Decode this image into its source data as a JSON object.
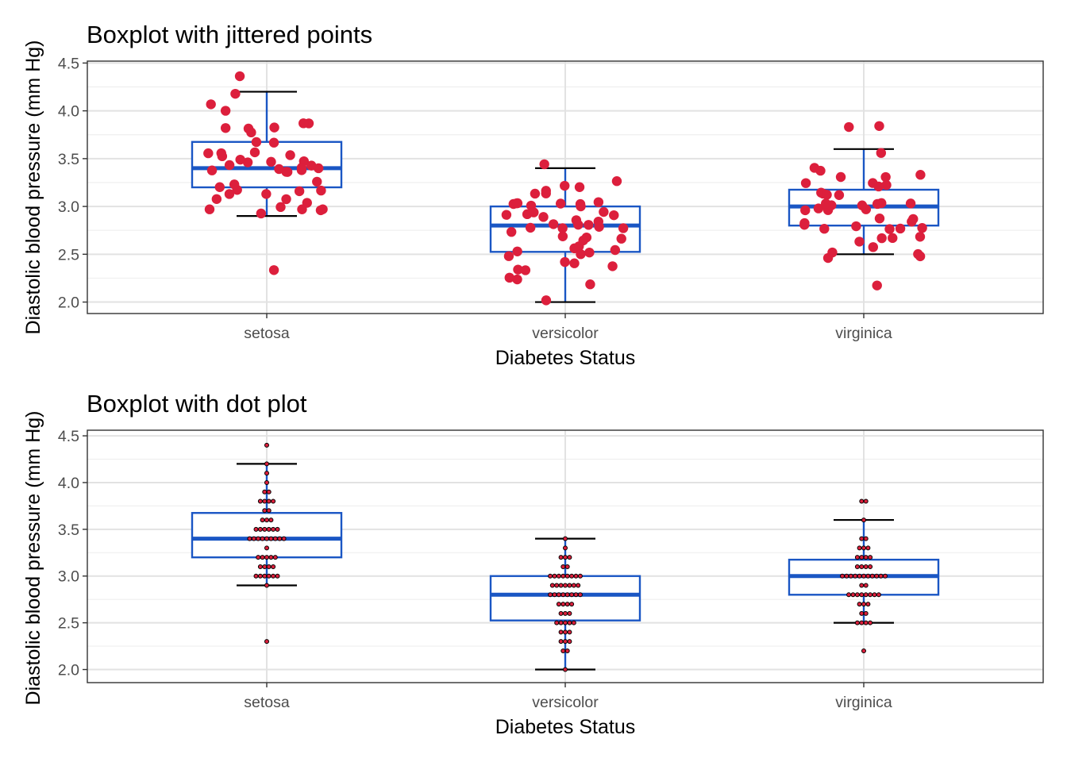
{
  "colors": {
    "box": "#1a56c4",
    "jitter_point": "#dc1f3c",
    "dot_fill": "#dc1f3c",
    "dot_stroke": "#000000",
    "whisker": "#000000",
    "grid_major": "#e2e2e2",
    "grid_minor": "#efefef",
    "panel_border": "#333333",
    "tick_text": "#4d4d4d"
  },
  "chart_data": [
    {
      "type": "box",
      "title": "Boxplot with jittered points",
      "xlabel": "Diabetes Status",
      "ylabel": "Diastolic blood pressure (mm Hg)",
      "categories": [
        "setosa",
        "versicolor",
        "virginica"
      ],
      "ylim": [
        1.88,
        4.52
      ],
      "yticks": [
        2.0,
        2.5,
        3.0,
        3.5,
        4.0,
        4.5
      ],
      "ytick_labels": [
        "2.0",
        "2.5",
        "3.0",
        "3.5",
        "4.0",
        "4.5"
      ],
      "grid": true,
      "overlay": "jitter",
      "boxes": [
        {
          "category": "setosa",
          "whisker_low": 2.9,
          "q1": 3.2,
          "median": 3.4,
          "q3": 3.675,
          "whisker_high": 4.2
        },
        {
          "category": "versicolor",
          "whisker_low": 2.0,
          "q1": 2.525,
          "median": 2.8,
          "q3": 3.0,
          "whisker_high": 3.4
        },
        {
          "category": "virginica",
          "whisker_low": 2.5,
          "q1": 2.8,
          "median": 3.0,
          "q3": 3.175,
          "whisker_high": 3.6
        }
      ],
      "points": [
        {
          "category": "setosa",
          "values": [
            4.4,
            4.2,
            4.1,
            4.0,
            3.9,
            3.9,
            3.8,
            3.8,
            3.8,
            3.8,
            3.7,
            3.7,
            3.6,
            3.6,
            3.6,
            3.5,
            3.5,
            3.5,
            3.5,
            3.5,
            3.5,
            3.4,
            3.4,
            3.4,
            3.4,
            3.4,
            3.4,
            3.4,
            3.4,
            3.4,
            3.3,
            3.2,
            3.2,
            3.2,
            3.2,
            3.2,
            3.1,
            3.1,
            3.1,
            3.1,
            3.0,
            3.0,
            3.0,
            3.0,
            3.0,
            3.0,
            2.9,
            2.3
          ]
        },
        {
          "category": "versicolor",
          "values": [
            3.4,
            3.3,
            3.2,
            3.2,
            3.2,
            3.1,
            3.1,
            3.0,
            3.0,
            3.0,
            3.0,
            3.0,
            3.0,
            3.0,
            3.0,
            2.9,
            2.9,
            2.9,
            2.9,
            2.9,
            2.9,
            2.9,
            2.8,
            2.8,
            2.8,
            2.8,
            2.8,
            2.8,
            2.8,
            2.8,
            2.7,
            2.7,
            2.7,
            2.7,
            2.6,
            2.6,
            2.6,
            2.5,
            2.5,
            2.5,
            2.5,
            2.5,
            2.4,
            2.4,
            2.4,
            2.3,
            2.3,
            2.3,
            2.2,
            2.2,
            2.0
          ]
        },
        {
          "category": "virginica",
          "values": [
            3.8,
            3.8,
            3.6,
            3.4,
            3.4,
            3.3,
            3.3,
            3.3,
            3.2,
            3.2,
            3.2,
            3.2,
            3.1,
            3.1,
            3.1,
            3.1,
            3.0,
            3.0,
            3.0,
            3.0,
            3.0,
            3.0,
            3.0,
            3.0,
            3.0,
            3.0,
            3.0,
            2.9,
            2.9,
            2.8,
            2.8,
            2.8,
            2.8,
            2.8,
            2.8,
            2.8,
            2.8,
            2.7,
            2.7,
            2.7,
            2.6,
            2.6,
            2.5,
            2.5,
            2.5,
            2.5,
            2.2
          ]
        }
      ]
    },
    {
      "type": "box",
      "title": "Boxplot with dot plot",
      "xlabel": "Diabetes Status",
      "ylabel": "Diastolic blood pressure (mm Hg)",
      "categories": [
        "setosa",
        "versicolor",
        "virginica"
      ],
      "ylim": [
        1.86,
        4.56
      ],
      "yticks": [
        2.0,
        2.5,
        3.0,
        3.5,
        4.0,
        4.5
      ],
      "ytick_labels": [
        "2.0",
        "2.5",
        "3.0",
        "3.5",
        "4.0",
        "4.5"
      ],
      "grid": true,
      "overlay": "dotplot",
      "boxes": [
        {
          "category": "setosa",
          "whisker_low": 2.9,
          "q1": 3.2,
          "median": 3.4,
          "q3": 3.675,
          "whisker_high": 4.2
        },
        {
          "category": "versicolor",
          "whisker_low": 2.0,
          "q1": 2.525,
          "median": 2.8,
          "q3": 3.0,
          "whisker_high": 3.4
        },
        {
          "category": "virginica",
          "whisker_low": 2.5,
          "q1": 2.8,
          "median": 3.0,
          "q3": 3.175,
          "whisker_high": 3.6
        }
      ],
      "points": [
        {
          "category": "setosa",
          "values": [
            4.4,
            4.2,
            4.1,
            4.0,
            3.9,
            3.9,
            3.8,
            3.8,
            3.8,
            3.8,
            3.7,
            3.7,
            3.6,
            3.6,
            3.6,
            3.5,
            3.5,
            3.5,
            3.5,
            3.5,
            3.5,
            3.4,
            3.4,
            3.4,
            3.4,
            3.4,
            3.4,
            3.4,
            3.4,
            3.4,
            3.3,
            3.2,
            3.2,
            3.2,
            3.2,
            3.2,
            3.1,
            3.1,
            3.1,
            3.1,
            3.0,
            3.0,
            3.0,
            3.0,
            3.0,
            3.0,
            2.9,
            2.3
          ]
        },
        {
          "category": "versicolor",
          "values": [
            3.4,
            3.3,
            3.2,
            3.2,
            3.2,
            3.1,
            3.1,
            3.0,
            3.0,
            3.0,
            3.0,
            3.0,
            3.0,
            3.0,
            3.0,
            2.9,
            2.9,
            2.9,
            2.9,
            2.9,
            2.9,
            2.9,
            2.8,
            2.8,
            2.8,
            2.8,
            2.8,
            2.8,
            2.8,
            2.8,
            2.7,
            2.7,
            2.7,
            2.7,
            2.6,
            2.6,
            2.6,
            2.5,
            2.5,
            2.5,
            2.5,
            2.5,
            2.4,
            2.4,
            2.4,
            2.3,
            2.3,
            2.3,
            2.2,
            2.2,
            2.0
          ]
        },
        {
          "category": "virginica",
          "values": [
            3.8,
            3.8,
            3.6,
            3.4,
            3.4,
            3.3,
            3.3,
            3.3,
            3.2,
            3.2,
            3.2,
            3.2,
            3.1,
            3.1,
            3.1,
            3.1,
            3.0,
            3.0,
            3.0,
            3.0,
            3.0,
            3.0,
            3.0,
            3.0,
            3.0,
            3.0,
            3.0,
            2.9,
            2.9,
            2.8,
            2.8,
            2.8,
            2.8,
            2.8,
            2.8,
            2.8,
            2.8,
            2.7,
            2.7,
            2.7,
            2.6,
            2.6,
            2.5,
            2.5,
            2.5,
            2.5,
            2.2
          ]
        }
      ]
    }
  ]
}
